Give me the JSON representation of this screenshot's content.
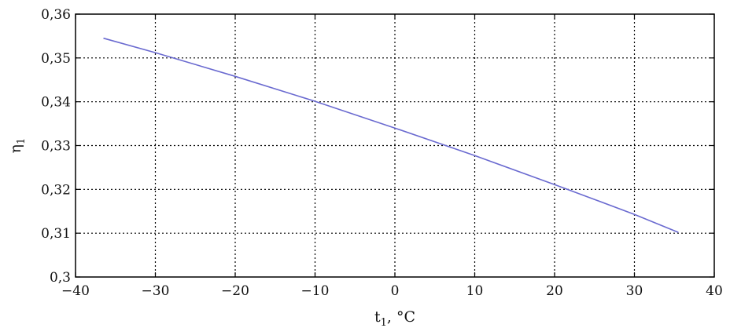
{
  "chart_data": {
    "type": "line",
    "xlabel": "t",
    "xlabel_sub": "1",
    "xlabel_unit": ", °C",
    "ylabel": "η",
    "ylabel_sub": "1",
    "xlim": [
      -40,
      40
    ],
    "ylim": [
      0.3,
      0.36
    ],
    "xticks": [
      -40,
      -30,
      -20,
      -10,
      0,
      10,
      20,
      30,
      40
    ],
    "xtick_labels": [
      "−40",
      "−30",
      "−20",
      "−10",
      "0",
      "10",
      "20",
      "30",
      "40"
    ],
    "yticks": [
      0.3,
      0.31,
      0.32,
      0.33,
      0.34,
      0.35,
      0.36
    ],
    "ytick_labels": [
      "0,3",
      "0,31",
      "0,32",
      "0,33",
      "0,34",
      "0,35",
      "0,36"
    ],
    "grid": true,
    "series": [
      {
        "color": "#6a6ad0",
        "x": [
          -36.5,
          -30,
          -20,
          -10,
          0,
          10,
          20,
          30,
          35.5
        ],
        "y": [
          0.3545,
          0.3512,
          0.3458,
          0.3401,
          0.334,
          0.3277,
          0.3211,
          0.3143,
          0.3102
        ]
      }
    ]
  }
}
